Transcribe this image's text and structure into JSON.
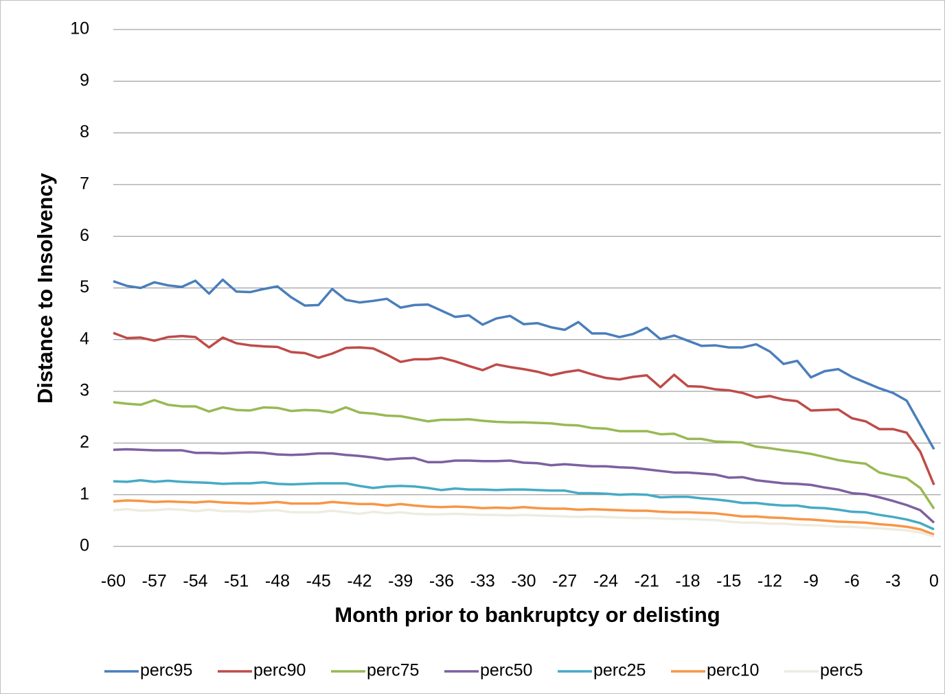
{
  "chart_data": {
    "type": "line",
    "xlabel": "Month prior to bankruptcy or delisting",
    "ylabel": "Distance to Insolvency",
    "x": [
      -60,
      -59,
      -58,
      -57,
      -56,
      -55,
      -54,
      -53,
      -52,
      -51,
      -50,
      -49,
      -48,
      -47,
      -46,
      -45,
      -44,
      -43,
      -42,
      -41,
      -40,
      -39,
      -38,
      -37,
      -36,
      -35,
      -34,
      -33,
      -32,
      -31,
      -30,
      -29,
      -28,
      -27,
      -26,
      -25,
      -24,
      -23,
      -22,
      -21,
      -20,
      -19,
      -18,
      -17,
      -16,
      -15,
      -14,
      -13,
      -12,
      -11,
      -10,
      -9,
      -8,
      -7,
      -6,
      -5,
      -4,
      -3,
      -2,
      -1,
      0
    ],
    "xlim": [
      -60,
      0
    ],
    "xticks": [
      -60,
      -57,
      -54,
      -51,
      -48,
      -45,
      -42,
      -39,
      -36,
      -33,
      -30,
      -27,
      -24,
      -21,
      -18,
      -15,
      -12,
      -9,
      -6,
      -3,
      0
    ],
    "ylim": [
      0,
      10
    ],
    "yticks": [
      0,
      1,
      2,
      3,
      4,
      5,
      6,
      7,
      8,
      9,
      10
    ],
    "grid": true,
    "legend": "bottom",
    "series": [
      {
        "name": "perc95",
        "color": "#4a7ebb",
        "values": [
          5.13,
          5.04,
          5.0,
          5.11,
          5.05,
          5.02,
          5.14,
          4.89,
          5.16,
          4.93,
          4.92,
          4.98,
          5.03,
          4.82,
          4.66,
          4.67,
          4.98,
          4.77,
          4.72,
          4.75,
          4.79,
          4.62,
          4.67,
          4.68,
          4.56,
          4.44,
          4.47,
          4.29,
          4.41,
          4.46,
          4.3,
          4.32,
          4.24,
          4.19,
          4.34,
          4.12,
          4.12,
          4.05,
          4.11,
          4.23,
          4.01,
          4.08,
          3.98,
          3.88,
          3.89,
          3.85,
          3.85,
          3.91,
          3.77,
          3.53,
          3.59,
          3.27,
          3.39,
          3.43,
          3.28,
          3.17,
          3.06,
          2.97,
          2.82,
          2.35,
          1.88
        ]
      },
      {
        "name": "perc90",
        "color": "#be4b48",
        "values": [
          4.13,
          4.03,
          4.04,
          3.98,
          4.05,
          4.07,
          4.05,
          3.85,
          4.04,
          3.93,
          3.89,
          3.87,
          3.86,
          3.76,
          3.74,
          3.65,
          3.73,
          3.84,
          3.85,
          3.83,
          3.71,
          3.57,
          3.62,
          3.62,
          3.65,
          3.58,
          3.49,
          3.41,
          3.52,
          3.47,
          3.43,
          3.38,
          3.31,
          3.37,
          3.41,
          3.33,
          3.26,
          3.23,
          3.28,
          3.31,
          3.08,
          3.32,
          3.1,
          3.09,
          3.04,
          3.02,
          2.97,
          2.88,
          2.91,
          2.84,
          2.81,
          2.63,
          2.64,
          2.65,
          2.48,
          2.42,
          2.27,
          2.27,
          2.2,
          1.83,
          1.19
        ]
      },
      {
        "name": "perc75",
        "color": "#98b954",
        "values": [
          2.79,
          2.76,
          2.74,
          2.83,
          2.74,
          2.71,
          2.71,
          2.61,
          2.69,
          2.64,
          2.63,
          2.69,
          2.68,
          2.62,
          2.64,
          2.63,
          2.59,
          2.69,
          2.59,
          2.57,
          2.53,
          2.52,
          2.47,
          2.42,
          2.45,
          2.45,
          2.46,
          2.43,
          2.41,
          2.4,
          2.4,
          2.39,
          2.38,
          2.35,
          2.34,
          2.29,
          2.28,
          2.23,
          2.23,
          2.23,
          2.17,
          2.18,
          2.08,
          2.08,
          2.03,
          2.02,
          2.01,
          1.93,
          1.9,
          1.86,
          1.83,
          1.79,
          1.73,
          1.67,
          1.63,
          1.6,
          1.43,
          1.37,
          1.32,
          1.13,
          0.73
        ]
      },
      {
        "name": "perc50",
        "color": "#7d60a0",
        "values": [
          1.87,
          1.88,
          1.87,
          1.86,
          1.86,
          1.86,
          1.81,
          1.81,
          1.8,
          1.81,
          1.82,
          1.81,
          1.78,
          1.77,
          1.78,
          1.8,
          1.8,
          1.77,
          1.75,
          1.72,
          1.68,
          1.7,
          1.71,
          1.63,
          1.63,
          1.66,
          1.66,
          1.65,
          1.65,
          1.66,
          1.62,
          1.61,
          1.57,
          1.59,
          1.57,
          1.55,
          1.55,
          1.53,
          1.52,
          1.49,
          1.46,
          1.43,
          1.43,
          1.41,
          1.39,
          1.33,
          1.34,
          1.28,
          1.25,
          1.22,
          1.21,
          1.19,
          1.14,
          1.1,
          1.03,
          1.01,
          0.95,
          0.88,
          0.8,
          0.7,
          0.46
        ]
      },
      {
        "name": "perc25",
        "color": "#46aac5",
        "values": [
          1.26,
          1.25,
          1.28,
          1.25,
          1.27,
          1.25,
          1.24,
          1.23,
          1.21,
          1.22,
          1.22,
          1.24,
          1.21,
          1.2,
          1.21,
          1.22,
          1.22,
          1.22,
          1.17,
          1.13,
          1.16,
          1.17,
          1.16,
          1.13,
          1.09,
          1.12,
          1.1,
          1.1,
          1.09,
          1.1,
          1.1,
          1.09,
          1.08,
          1.08,
          1.03,
          1.03,
          1.02,
          1.0,
          1.01,
          1.0,
          0.95,
          0.96,
          0.96,
          0.93,
          0.91,
          0.88,
          0.84,
          0.84,
          0.81,
          0.79,
          0.79,
          0.75,
          0.74,
          0.71,
          0.67,
          0.66,
          0.61,
          0.57,
          0.52,
          0.45,
          0.33
        ]
      },
      {
        "name": "perc10",
        "color": "#f79646",
        "values": [
          0.87,
          0.89,
          0.88,
          0.86,
          0.87,
          0.86,
          0.85,
          0.87,
          0.85,
          0.84,
          0.83,
          0.84,
          0.86,
          0.83,
          0.83,
          0.83,
          0.86,
          0.84,
          0.82,
          0.82,
          0.79,
          0.82,
          0.79,
          0.77,
          0.76,
          0.77,
          0.76,
          0.74,
          0.75,
          0.74,
          0.76,
          0.74,
          0.73,
          0.73,
          0.71,
          0.72,
          0.71,
          0.7,
          0.69,
          0.69,
          0.67,
          0.66,
          0.66,
          0.65,
          0.64,
          0.61,
          0.58,
          0.58,
          0.56,
          0.55,
          0.53,
          0.52,
          0.5,
          0.48,
          0.47,
          0.46,
          0.43,
          0.41,
          0.38,
          0.33,
          0.23
        ]
      },
      {
        "name": "perc5",
        "color": "#eeece0",
        "values": [
          0.7,
          0.72,
          0.69,
          0.7,
          0.72,
          0.71,
          0.68,
          0.71,
          0.68,
          0.68,
          0.67,
          0.69,
          0.7,
          0.66,
          0.66,
          0.66,
          0.69,
          0.66,
          0.63,
          0.67,
          0.64,
          0.66,
          0.63,
          0.62,
          0.62,
          0.63,
          0.62,
          0.61,
          0.61,
          0.6,
          0.61,
          0.6,
          0.59,
          0.58,
          0.57,
          0.58,
          0.57,
          0.56,
          0.55,
          0.55,
          0.54,
          0.53,
          0.53,
          0.52,
          0.51,
          0.48,
          0.46,
          0.46,
          0.44,
          0.44,
          0.42,
          0.41,
          0.4,
          0.38,
          0.38,
          0.36,
          0.35,
          0.33,
          0.31,
          0.27,
          0.19
        ]
      }
    ]
  }
}
